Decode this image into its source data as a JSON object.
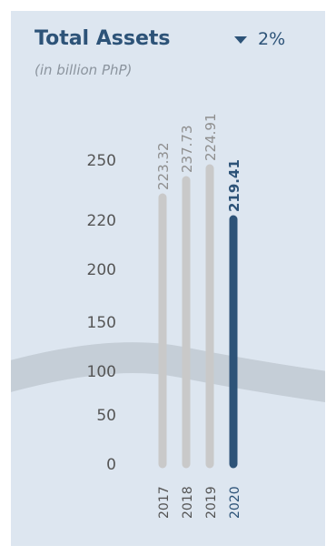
{
  "card": {
    "title": "Total Assets",
    "change_value": "2%",
    "change_direction": "down",
    "unit": "(in billion PhP)"
  },
  "colors": {
    "title": "#2d5378",
    "highlight_bar": "#2d5378",
    "bar": "#c9c9c9",
    "track_band": "#c5ced7",
    "card_bg": "#dde6f0"
  },
  "icons": {
    "change_indicator": "caret-down-icon"
  },
  "chart_data": {
    "type": "bar",
    "orientation": "vertical",
    "categories": [
      "2017",
      "2018",
      "2019",
      "2020"
    ],
    "values": [
      223.32,
      237.73,
      224.91,
      219.41
    ],
    "value_labels": [
      "223.32",
      "237.73",
      "224.91",
      "219.41"
    ],
    "highlight_index": 3,
    "y_tick_labels": [
      "0",
      "50",
      "100",
      "150",
      "200",
      "220",
      "250"
    ],
    "ylabel": "(in billion PhP)",
    "grid": false,
    "legend": "none"
  }
}
